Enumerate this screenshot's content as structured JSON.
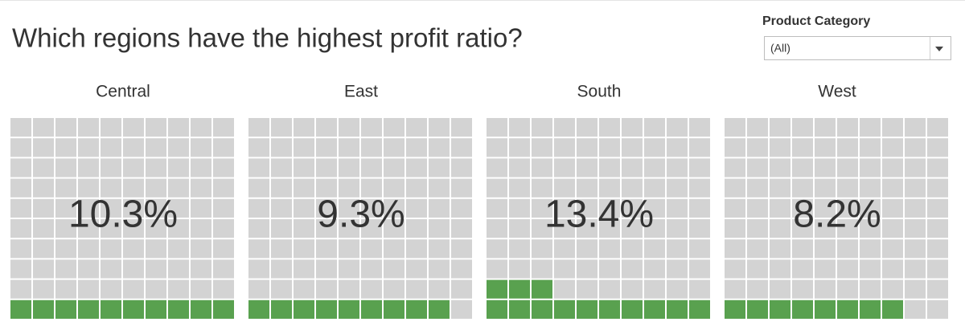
{
  "chart_data": {
    "type": "waffle",
    "title": "Which regions have the highest profit ratio?",
    "categories": [
      "Central",
      "East",
      "South",
      "West"
    ],
    "values": [
      10.3,
      9.3,
      13.4,
      8.2
    ],
    "value_labels": [
      "10.3%",
      "9.3%",
      "13.4%",
      "8.2%"
    ],
    "color": "#59a14f",
    "empty_color": "#d3d3d3"
  },
  "filter": {
    "label": "Product Category",
    "value": "(All)"
  }
}
